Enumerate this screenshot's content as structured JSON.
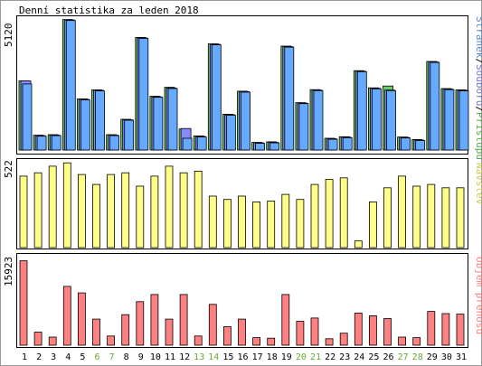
{
  "title": "Denní statistika za leden 2018",
  "colors": {
    "background": "#ffffff",
    "frame": "#000000",
    "pages": "#66aaff",
    "files": "#8888ff",
    "hits": "#66cc66",
    "visits": "#ffff88",
    "kbytes": "#ff8080",
    "weekend_label": "#66aa33",
    "legend_pages": "#5588cc",
    "legend_files": "#7777cc",
    "legend_hits": "#55aa55",
    "legend_visits": "#cccc55",
    "legend_kbytes": "#ff8080"
  },
  "chart_data": {
    "type": "bar",
    "title": "Denní statistika za leden 2018",
    "categories": [
      "1",
      "2",
      "3",
      "4",
      "5",
      "6",
      "7",
      "8",
      "9",
      "10",
      "11",
      "12",
      "13",
      "14",
      "15",
      "16",
      "17",
      "18",
      "19",
      "20",
      "21",
      "22",
      "23",
      "24",
      "25",
      "26",
      "27",
      "28",
      "29",
      "30",
      "31"
    ],
    "weekend_days": [
      "6",
      "7",
      "13",
      "14",
      "20",
      "21",
      "27",
      "28"
    ],
    "panels": [
      {
        "id": "traffic",
        "ymax_label": "5120",
        "ylim": [
          0,
          5120
        ],
        "legend": {
          "parts": [
            {
              "text": "Stránek",
              "color_key": "legend_pages"
            },
            {
              "text": "/",
              "color_key": "frame"
            },
            {
              "text": "Souborů",
              "color_key": "legend_files"
            },
            {
              "text": "/",
              "color_key": "frame"
            },
            {
              "text": "Přístupů",
              "color_key": "legend_hits"
            }
          ]
        },
        "series": [
          {
            "name": "Přístupů",
            "color_key": "hits",
            "values": [
              2700,
              580,
              600,
              5100,
              2000,
              2350,
              600,
              1200,
              4400,
              2100,
              2450,
              820,
              550,
              4150,
              1400,
              2300,
              300,
              320,
              4060,
              1850,
              2360,
              460,
              520,
              3100,
              2430,
              2500,
              510,
              410,
              3460,
              2400,
              2350
            ]
          },
          {
            "name": "Souborů",
            "color_key": "files",
            "values": [
              2700,
              560,
              580,
              5080,
              1980,
              2330,
              580,
              1180,
              4380,
              2080,
              2420,
              840,
              530,
              4130,
              1380,
              2280,
              280,
              300,
              4040,
              1830,
              2340,
              440,
              500,
              3080,
              2410,
              2340,
              490,
              390,
              3440,
              2380,
              2330
            ]
          },
          {
            "name": "Stránek",
            "color_key": "pages",
            "values": [
              2580,
              540,
              560,
              5060,
              1960,
              2310,
              560,
              1160,
              4360,
              2060,
              2400,
              460,
              510,
              4110,
              1360,
              2260,
              260,
              280,
              4020,
              1810,
              2320,
              420,
              480,
              3060,
              2390,
              2320,
              470,
              370,
              3420,
              2360,
              2310
            ]
          }
        ]
      },
      {
        "id": "visits",
        "ymax_label": "522",
        "ylim": [
          0,
          522
        ],
        "legend": {
          "parts": [
            {
              "text": "Návštěv",
              "color_key": "legend_visits"
            }
          ]
        },
        "series": [
          {
            "name": "Návštěv",
            "color_key": "visits",
            "values": [
              430,
              450,
              490,
              510,
              440,
              380,
              440,
              450,
              370,
              430,
              490,
              450,
              460,
              310,
              290,
              310,
              275,
              280,
              320,
              290,
              380,
              410,
              420,
              40,
              275,
              360,
              430,
              370,
              380,
              360,
              360
            ]
          }
        ]
      },
      {
        "id": "kbytes",
        "ymax_label": "15923",
        "ylim": [
          0,
          15923
        ],
        "legend": {
          "parts": [
            {
              "text": "Objem přenosu",
              "color_key": "legend_kbytes"
            }
          ]
        },
        "series": [
          {
            "name": "Objem přenosu",
            "color_key": "kbytes",
            "values": [
              15500,
              2400,
              1500,
              10800,
              9600,
              4800,
              1700,
              5600,
              8000,
              9300,
              4800,
              9300,
              1700,
              7500,
              3400,
              4800,
              1400,
              1300,
              9300,
              4400,
              5000,
              1200,
              2200,
              5900,
              5400,
              4900,
              1500,
              1400,
              6200,
              5800,
              5700
            ]
          }
        ]
      }
    ]
  }
}
